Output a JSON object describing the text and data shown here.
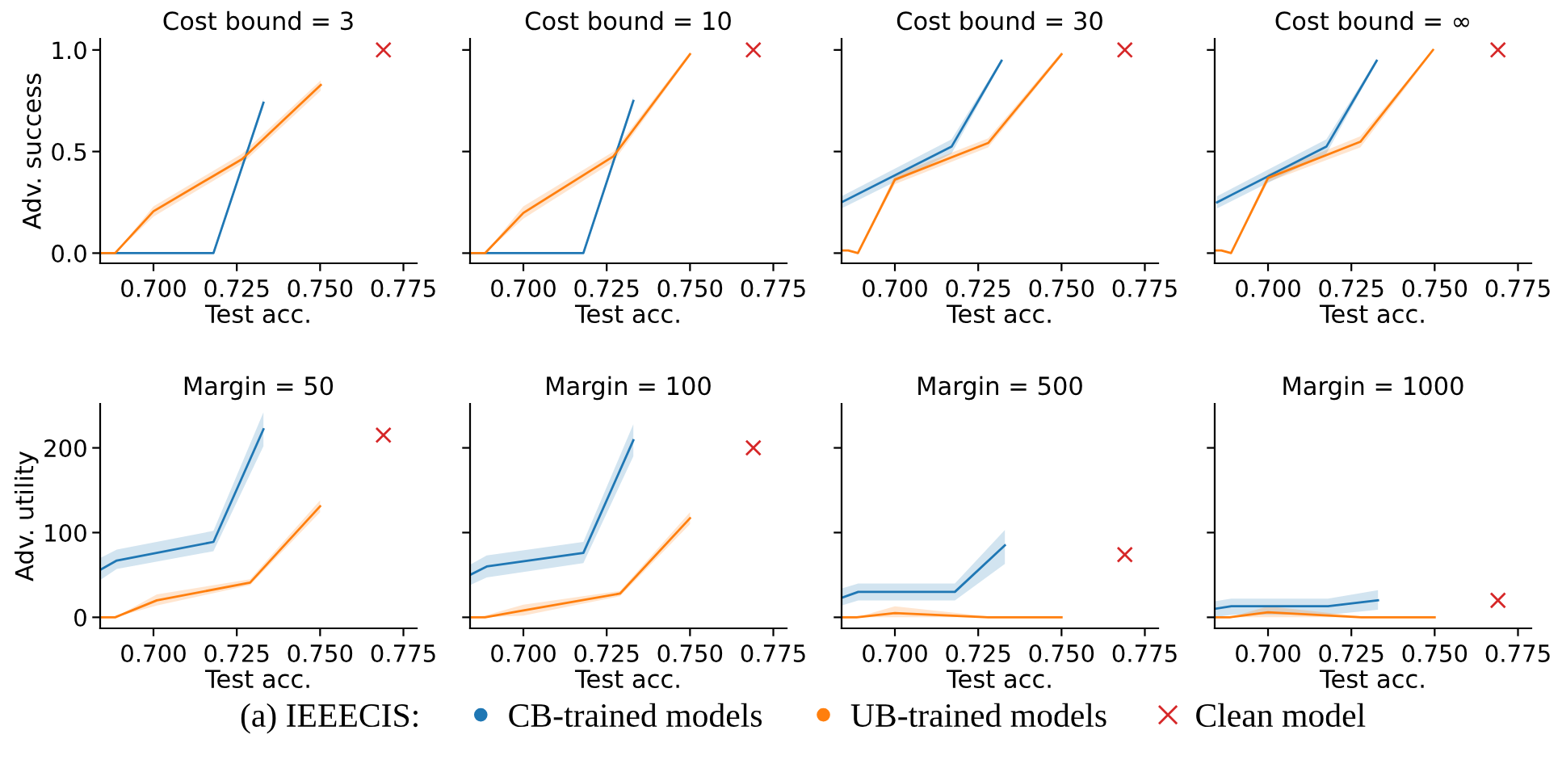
{
  "chart_data": [
    {
      "type": "line",
      "title": "Cost bound = 3",
      "xlabel": "Test acc.",
      "ylabel": "Adv. success",
      "legend": "bottom",
      "legend_title": "(a) IEEECIS:",
      "xlim": [
        0.684,
        0.779
      ],
      "xticks": [
        {
          "value": 0.7,
          "label": "0.700"
        },
        {
          "value": 0.725,
          "label": "0.725"
        },
        {
          "value": 0.75,
          "label": "0.750"
        },
        {
          "value": 0.775,
          "label": "0.775"
        }
      ],
      "ylim": [
        -0.05,
        1.055
      ],
      "yticks": [
        {
          "value": 0,
          "label": "0.0"
        },
        {
          "value": 0.5,
          "label": "0.5"
        },
        {
          "value": 1,
          "label": "1.0"
        }
      ],
      "series": [
        {
          "name": "CB-trained models",
          "color": "#1f77b4",
          "x": [
            0.684,
            0.689,
            0.718,
            0.733
          ],
          "values": [
            0,
            0,
            0,
            0.74
          ],
          "lower": [
            0,
            0,
            0,
            0.72
          ],
          "upper": [
            0,
            0,
            0,
            0.76
          ]
        },
        {
          "name": "UB-trained models",
          "color": "#ff7f0e",
          "x": [
            0.684,
            0.6885,
            0.7,
            0.7266,
            0.7502
          ],
          "values": [
            0,
            0,
            0.206,
            0.463,
            0.828
          ],
          "lower": [
            0,
            0,
            0.18,
            0.44,
            0.8
          ],
          "upper": [
            0,
            0,
            0.23,
            0.49,
            0.85
          ]
        },
        {
          "name": "Clean model",
          "type": "scatter",
          "marker": "cross",
          "color": "#d62728",
          "x": [
            0.769
          ],
          "values": [
            1.0
          ]
        }
      ]
    },
    {
      "type": "line",
      "title": "Cost bound = 10",
      "xlabel": "Test acc.",
      "tick_labels": "x",
      "xlim": [
        0.684,
        0.779
      ],
      "xticks": [
        {
          "value": 0.7,
          "label": "0.700"
        },
        {
          "value": 0.725,
          "label": "0.725"
        },
        {
          "value": 0.75,
          "label": "0.750"
        },
        {
          "value": 0.775,
          "label": "0.775"
        }
      ],
      "ylim": [
        -0.05,
        1.055
      ],
      "yticks": [
        0,
        0.5,
        1
      ],
      "series": [
        {
          "name": "CB-trained models",
          "color": "#1f77b4",
          "x": [
            0.684,
            0.689,
            0.718,
            0.733
          ],
          "values": [
            0,
            0,
            0,
            0.749
          ],
          "lower": [
            0,
            0,
            0,
            0.73
          ],
          "upper": [
            0,
            0,
            0,
            0.77
          ]
        },
        {
          "name": "UB-trained models",
          "color": "#ff7f0e",
          "x": [
            0.684,
            0.6885,
            0.7,
            0.727,
            0.75
          ],
          "values": [
            0,
            0,
            0.198,
            0.476,
            0.979
          ],
          "lower": [
            0,
            0,
            0.17,
            0.45,
            0.97
          ],
          "upper": [
            0,
            0,
            0.23,
            0.5,
            0.99
          ]
        },
        {
          "name": "Clean model",
          "type": "scatter",
          "marker": "cross",
          "color": "#d62728",
          "x": [
            0.769
          ],
          "values": [
            1.0
          ]
        }
      ]
    },
    {
      "type": "line",
      "title": "Cost bound = 30",
      "xlabel": "Test acc.",
      "tick_labels": "x",
      "xlim": [
        0.684,
        0.779
      ],
      "xticks": [
        {
          "value": 0.7,
          "label": "0.700"
        },
        {
          "value": 0.725,
          "label": "0.725"
        },
        {
          "value": 0.75,
          "label": "0.750"
        },
        {
          "value": 0.775,
          "label": "0.775"
        }
      ],
      "ylim": [
        -0.05,
        1.055
      ],
      "yticks": [
        0,
        0.5,
        1
      ],
      "series": [
        {
          "name": "CB-trained models",
          "color": "#1f77b4",
          "x": [
            0.684,
            0.717,
            0.732
          ],
          "values": [
            0.25,
            0.524,
            0.947
          ],
          "lower": [
            0.22,
            0.49,
            0.94
          ],
          "upper": [
            0.28,
            0.56,
            0.955
          ]
        },
        {
          "name": "UB-trained models",
          "color": "#ff7f0e",
          "x": [
            0.684,
            0.686,
            0.6889,
            0.7,
            0.728,
            0.75
          ],
          "values": [
            0.013,
            0.013,
            0,
            0.362,
            0.542,
            0.979
          ],
          "lower": [
            0.01,
            0.01,
            0,
            0.34,
            0.52,
            0.97
          ],
          "upper": [
            0.016,
            0.016,
            0,
            0.385,
            0.565,
            0.99
          ]
        },
        {
          "name": "Clean model",
          "type": "scatter",
          "marker": "cross",
          "color": "#d62728",
          "x": [
            0.769
          ],
          "values": [
            1.0
          ]
        }
      ]
    },
    {
      "type": "line",
      "title": "Cost bound = ∞",
      "xlabel": "Test acc.",
      "tick_labels": "x",
      "xlim": [
        0.684,
        0.779
      ],
      "xticks": [
        {
          "value": 0.7,
          "label": "0.700"
        },
        {
          "value": 0.725,
          "label": "0.725"
        },
        {
          "value": 0.75,
          "label": "0.750"
        },
        {
          "value": 0.775,
          "label": "0.775"
        }
      ],
      "ylim": [
        -0.05,
        1.055
      ],
      "yticks": [
        0,
        0.5,
        1
      ],
      "series": [
        {
          "name": "CB-trained models",
          "color": "#1f77b4",
          "x": [
            0.6847,
            0.7175,
            0.7326
          ],
          "values": [
            0.25,
            0.524,
            0.947
          ],
          "lower": [
            0.22,
            0.49,
            0.94
          ],
          "upper": [
            0.28,
            0.56,
            0.955
          ]
        },
        {
          "name": "UB-trained models",
          "color": "#ff7f0e",
          "x": [
            0.684,
            0.686,
            0.6889,
            0.7,
            0.7277,
            0.7495
          ],
          "values": [
            0.013,
            0.013,
            0,
            0.37,
            0.548,
            1.0
          ],
          "lower": [
            0.01,
            0.01,
            0,
            0.35,
            0.52,
            0.99
          ],
          "upper": [
            0.016,
            0.016,
            0,
            0.39,
            0.575,
            1.0
          ]
        },
        {
          "name": "Clean model",
          "type": "scatter",
          "marker": "cross",
          "color": "#d62728",
          "x": [
            0.769
          ],
          "values": [
            1.0
          ]
        }
      ]
    },
    {
      "type": "line",
      "title": "Margin = 50",
      "xlabel": "Test acc.",
      "ylabel": "Adv. utility",
      "xlim": [
        0.684,
        0.779
      ],
      "xticks": [
        {
          "value": 0.7,
          "label": "0.700"
        },
        {
          "value": 0.725,
          "label": "0.725"
        },
        {
          "value": 0.75,
          "label": "0.750"
        },
        {
          "value": 0.775,
          "label": "0.775"
        }
      ],
      "ylim": [
        -13,
        252
      ],
      "yticks": [
        0,
        100,
        200
      ],
      "series": [
        {
          "name": "CB-trained models",
          "color": "#1f77b4",
          "x": [
            0.684,
            0.689,
            0.718,
            0.733
          ],
          "values": [
            56,
            67,
            89,
            222
          ],
          "lower": [
            44,
            57,
            78,
            202
          ],
          "upper": [
            70,
            80,
            102,
            242
          ]
        },
        {
          "name": "UB-trained models",
          "color": "#ff7f0e",
          "x": [
            0.684,
            0.6885,
            0.701,
            0.729,
            0.75
          ],
          "values": [
            0,
            0,
            20,
            41,
            131
          ],
          "lower": [
            0,
            0,
            14,
            38,
            124
          ],
          "upper": [
            0,
            0,
            27,
            45,
            138
          ]
        },
        {
          "name": "Clean model",
          "type": "scatter",
          "marker": "cross",
          "color": "#d62728",
          "x": [
            0.769
          ],
          "values": [
            215
          ]
        }
      ]
    },
    {
      "type": "line",
      "title": "Margin = 100",
      "xlabel": "Test acc.",
      "tick_labels": "x",
      "xlim": [
        0.684,
        0.779
      ],
      "xticks": [
        {
          "value": 0.7,
          "label": "0.700"
        },
        {
          "value": 0.725,
          "label": "0.725"
        },
        {
          "value": 0.75,
          "label": "0.750"
        },
        {
          "value": 0.775,
          "label": "0.775"
        }
      ],
      "ylim": [
        -13,
        252
      ],
      "yticks": [
        0,
        100,
        200
      ],
      "series": [
        {
          "name": "CB-trained models",
          "color": "#1f77b4",
          "x": [
            0.684,
            0.689,
            0.718,
            0.733
          ],
          "values": [
            50,
            60,
            76,
            209
          ],
          "lower": [
            38,
            47,
            64,
            190
          ],
          "upper": [
            62,
            73,
            89,
            228
          ]
        },
        {
          "name": "UB-trained models",
          "color": "#ff7f0e",
          "x": [
            0.684,
            0.6885,
            0.7,
            0.729,
            0.75
          ],
          "values": [
            0,
            0,
            8,
            28,
            117
          ],
          "lower": [
            0,
            0,
            2,
            25,
            110
          ],
          "upper": [
            0,
            2,
            15,
            31,
            124
          ]
        },
        {
          "name": "Clean model",
          "type": "scatter",
          "marker": "cross",
          "color": "#d62728",
          "x": [
            0.769
          ],
          "values": [
            200
          ]
        }
      ]
    },
    {
      "type": "line",
      "title": "Margin = 500",
      "xlabel": "Test acc.",
      "tick_labels": "x",
      "xlim": [
        0.684,
        0.779
      ],
      "xticks": [
        {
          "value": 0.7,
          "label": "0.700"
        },
        {
          "value": 0.725,
          "label": "0.725"
        },
        {
          "value": 0.75,
          "label": "0.750"
        },
        {
          "value": 0.775,
          "label": "0.775"
        }
      ],
      "ylim": [
        -13,
        252
      ],
      "yticks": [
        0,
        100,
        200
      ],
      "series": [
        {
          "name": "CB-trained models",
          "color": "#1f77b4",
          "x": [
            0.684,
            0.689,
            0.718,
            0.733
          ],
          "values": [
            23,
            30,
            30,
            85
          ],
          "lower": [
            14,
            20,
            20,
            63
          ],
          "upper": [
            34,
            40,
            40,
            103
          ]
        },
        {
          "name": "UB-trained models",
          "color": "#ff7f0e",
          "x": [
            0.684,
            0.6885,
            0.7,
            0.728,
            0.75
          ],
          "values": [
            0,
            0,
            5,
            0,
            0
          ],
          "lower": [
            0,
            0,
            0,
            0,
            0
          ],
          "upper": [
            0,
            0,
            13,
            1,
            0
          ]
        },
        {
          "name": "Clean model",
          "type": "scatter",
          "marker": "cross",
          "color": "#d62728",
          "x": [
            0.769
          ],
          "values": [
            74
          ]
        }
      ]
    },
    {
      "type": "line",
      "title": "Margin = 1000",
      "xlabel": "Test acc.",
      "tick_labels": "x",
      "xlim": [
        0.684,
        0.779
      ],
      "xticks": [
        {
          "value": 0.7,
          "label": "0.700"
        },
        {
          "value": 0.725,
          "label": "0.725"
        },
        {
          "value": 0.75,
          "label": "0.750"
        },
        {
          "value": 0.775,
          "label": "0.775"
        }
      ],
      "ylim": [
        -13,
        252
      ],
      "yticks": [
        0,
        100,
        200
      ],
      "series": [
        {
          "name": "CB-trained models",
          "color": "#1f77b4",
          "x": [
            0.684,
            0.689,
            0.718,
            0.733
          ],
          "values": [
            10,
            13,
            13,
            20
          ],
          "lower": [
            0,
            3,
            3,
            9
          ],
          "upper": [
            19,
            22,
            22,
            32
          ]
        },
        {
          "name": "UB-trained models",
          "color": "#ff7f0e",
          "x": [
            0.684,
            0.6885,
            0.7,
            0.728,
            0.75
          ],
          "values": [
            0,
            0,
            6,
            0,
            0
          ],
          "lower": [
            0,
            0,
            0,
            0,
            0
          ],
          "upper": [
            0,
            0,
            13,
            1,
            0
          ]
        },
        {
          "name": "Clean model",
          "type": "scatter",
          "marker": "cross",
          "color": "#d62728",
          "x": [
            0.769
          ],
          "values": [
            20
          ]
        }
      ]
    }
  ]
}
